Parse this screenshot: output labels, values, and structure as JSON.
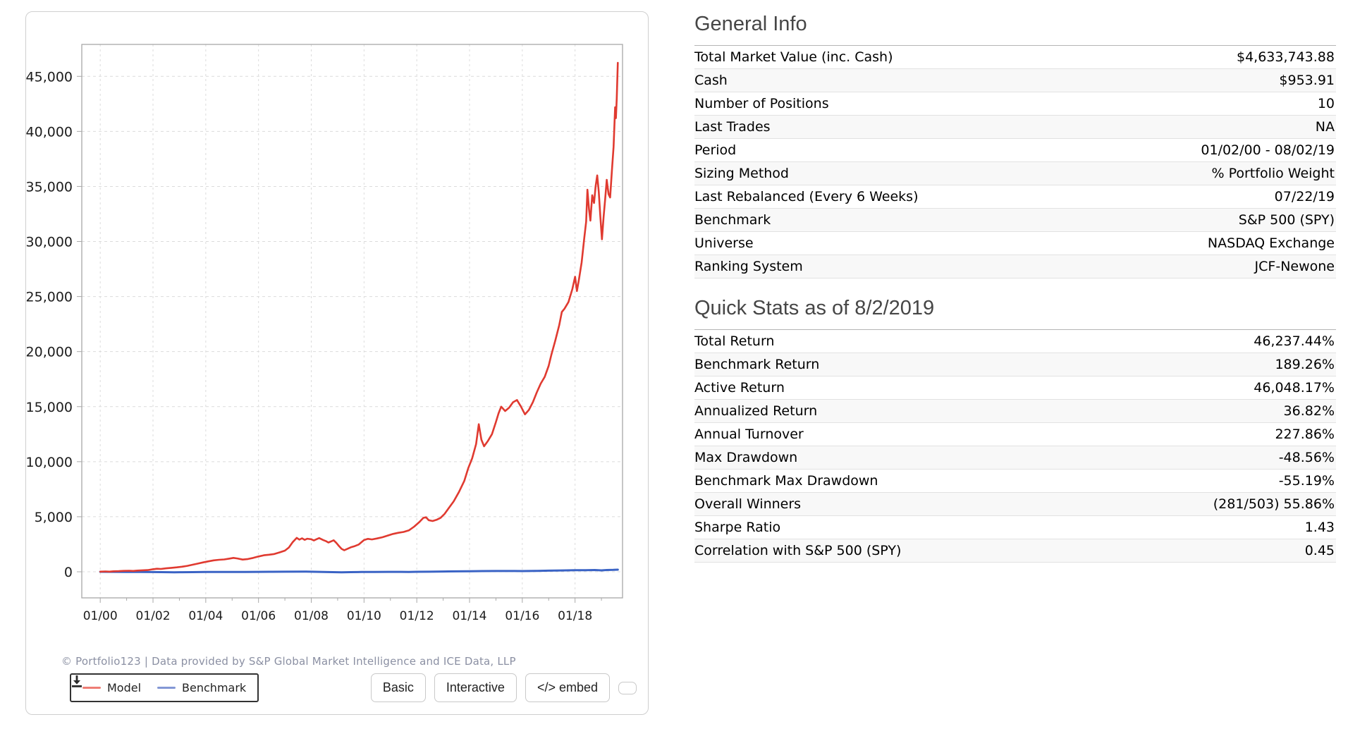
{
  "chart_card": {
    "attribution": "© Portfolio123 | Data provided by S&P Global Market Intelligence and ICE Data, LLP",
    "legend": [
      {
        "label": "Model",
        "swatch_color": "#ee7d75"
      },
      {
        "label": "Benchmark",
        "swatch_color": "#8397d5"
      }
    ],
    "buttons": {
      "basic": "Basic",
      "interactive": "Interactive",
      "embed": "</> embed",
      "download_icon": "download-icon"
    },
    "chart_data": {
      "type": "line",
      "title": "",
      "xlabel": "",
      "ylabel": "",
      "grid": true,
      "legend_position": "bottom-left",
      "xlim": [
        1999.3,
        2019.8
      ],
      "ylim": [
        -2370,
        47900
      ],
      "y_ticks": [
        0,
        5000,
        10000,
        15000,
        20000,
        25000,
        30000,
        35000,
        40000,
        45000
      ],
      "y_tick_labels": [
        "0",
        "5,000",
        "10,000",
        "15,000",
        "20,000",
        "25,000",
        "30,000",
        "35,000",
        "40,000",
        "45,000"
      ],
      "x_ticks": [
        2000,
        2002,
        2004,
        2006,
        2008,
        2010,
        2012,
        2014,
        2016,
        2018
      ],
      "x_tick_labels": [
        "01/00",
        "01/02",
        "01/04",
        "01/06",
        "01/08",
        "01/10",
        "01/12",
        "01/14",
        "01/16",
        "01/18"
      ],
      "series": [
        {
          "name": "Benchmark",
          "color": "#3a63c5",
          "width": 3,
          "points": [
            [
              2000,
              0
            ],
            [
              2000.5,
              -6
            ],
            [
              2001,
              -13
            ],
            [
              2001.5,
              -20
            ],
            [
              2002,
              -26
            ],
            [
              2002.6,
              -40
            ],
            [
              2002.8,
              -45
            ],
            [
              2003.1,
              -38
            ],
            [
              2003.5,
              -30
            ],
            [
              2004,
              -22
            ],
            [
              2004.5,
              -18
            ],
            [
              2005,
              -15
            ],
            [
              2005.5,
              -12
            ],
            [
              2006,
              -6
            ],
            [
              2006.5,
              0
            ],
            [
              2007,
              6
            ],
            [
              2007.8,
              14
            ],
            [
              2008.3,
              -5
            ],
            [
              2008.8,
              -32
            ],
            [
              2009.15,
              -48
            ],
            [
              2009.5,
              -32
            ],
            [
              2009.9,
              -22
            ],
            [
              2010.4,
              -18
            ],
            [
              2010.9,
              -8
            ],
            [
              2011.4,
              -4
            ],
            [
              2011.7,
              -14
            ],
            [
              2012,
              -2
            ],
            [
              2012.5,
              6
            ],
            [
              2013,
              22
            ],
            [
              2013.5,
              38
            ],
            [
              2014,
              52
            ],
            [
              2014.5,
              62
            ],
            [
              2015,
              72
            ],
            [
              2015.7,
              70
            ],
            [
              2016,
              64
            ],
            [
              2016.5,
              78
            ],
            [
              2017,
              104
            ],
            [
              2017.5,
              122
            ],
            [
              2018,
              146
            ],
            [
              2018.4,
              140
            ],
            [
              2018.75,
              158
            ],
            [
              2019,
              128
            ],
            [
              2019.2,
              158
            ],
            [
              2019.45,
              172
            ],
            [
              2019.62,
              189
            ]
          ]
        },
        {
          "name": "Model",
          "color": "#e03a30",
          "width": 2.6,
          "points": [
            [
              2000,
              10
            ],
            [
              2000.2,
              30
            ],
            [
              2000.35,
              15
            ],
            [
              2000.5,
              45
            ],
            [
              2000.7,
              60
            ],
            [
              2000.9,
              80
            ],
            [
              2001.1,
              95
            ],
            [
              2001.25,
              75
            ],
            [
              2001.4,
              110
            ],
            [
              2001.6,
              135
            ],
            [
              2001.8,
              155
            ],
            [
              2002,
              230
            ],
            [
              2002.15,
              275
            ],
            [
              2002.3,
              255
            ],
            [
              2002.5,
              310
            ],
            [
              2002.7,
              360
            ],
            [
              2002.9,
              400
            ],
            [
              2003.1,
              460
            ],
            [
              2003.3,
              540
            ],
            [
              2003.5,
              640
            ],
            [
              2003.7,
              740
            ],
            [
              2003.9,
              850
            ],
            [
              2004.1,
              950
            ],
            [
              2004.3,
              1040
            ],
            [
              2004.5,
              1090
            ],
            [
              2004.7,
              1120
            ],
            [
              2004.9,
              1200
            ],
            [
              2005.05,
              1260
            ],
            [
              2005.2,
              1210
            ],
            [
              2005.4,
              1110
            ],
            [
              2005.6,
              1160
            ],
            [
              2005.8,
              1260
            ],
            [
              2006,
              1390
            ],
            [
              2006.2,
              1500
            ],
            [
              2006.4,
              1550
            ],
            [
              2006.6,
              1610
            ],
            [
              2006.8,
              1760
            ],
            [
              2007,
              1920
            ],
            [
              2007.15,
              2200
            ],
            [
              2007.3,
              2700
            ],
            [
              2007.45,
              3080
            ],
            [
              2007.55,
              2920
            ],
            [
              2007.65,
              3040
            ],
            [
              2007.75,
              2900
            ],
            [
              2007.85,
              3000
            ],
            [
              2008,
              2950
            ],
            [
              2008.1,
              2840
            ],
            [
              2008.2,
              2960
            ],
            [
              2008.3,
              3060
            ],
            [
              2008.45,
              2890
            ],
            [
              2008.55,
              2790
            ],
            [
              2008.65,
              2660
            ],
            [
              2008.75,
              2760
            ],
            [
              2008.85,
              2860
            ],
            [
              2008.95,
              2620
            ],
            [
              2009.05,
              2340
            ],
            [
              2009.15,
              2080
            ],
            [
              2009.25,
              1960
            ],
            [
              2009.35,
              2060
            ],
            [
              2009.5,
              2220
            ],
            [
              2009.65,
              2330
            ],
            [
              2009.8,
              2480
            ],
            [
              2010,
              2880
            ],
            [
              2010.15,
              2990
            ],
            [
              2010.3,
              2940
            ],
            [
              2010.5,
              3030
            ],
            [
              2010.7,
              3140
            ],
            [
              2010.9,
              3290
            ],
            [
              2011.1,
              3440
            ],
            [
              2011.3,
              3540
            ],
            [
              2011.5,
              3620
            ],
            [
              2011.7,
              3760
            ],
            [
              2011.9,
              4100
            ],
            [
              2012.1,
              4520
            ],
            [
              2012.25,
              4900
            ],
            [
              2012.35,
              4950
            ],
            [
              2012.45,
              4690
            ],
            [
              2012.6,
              4610
            ],
            [
              2012.75,
              4720
            ],
            [
              2012.9,
              4890
            ],
            [
              2013.05,
              5250
            ],
            [
              2013.2,
              5750
            ],
            [
              2013.4,
              6400
            ],
            [
              2013.6,
              7250
            ],
            [
              2013.8,
              8250
            ],
            [
              2013.95,
              9400
            ],
            [
              2014.1,
              10300
            ],
            [
              2014.25,
              11600
            ],
            [
              2014.35,
              13400
            ],
            [
              2014.45,
              12000
            ],
            [
              2014.55,
              11400
            ],
            [
              2014.7,
              11900
            ],
            [
              2014.85,
              12500
            ],
            [
              2015,
              13600
            ],
            [
              2015.1,
              14400
            ],
            [
              2015.2,
              15000
            ],
            [
              2015.35,
              14600
            ],
            [
              2015.5,
              14900
            ],
            [
              2015.65,
              15400
            ],
            [
              2015.8,
              15600
            ],
            [
              2015.95,
              15000
            ],
            [
              2016.1,
              14300
            ],
            [
              2016.25,
              14700
            ],
            [
              2016.4,
              15400
            ],
            [
              2016.55,
              16300
            ],
            [
              2016.7,
              17100
            ],
            [
              2016.85,
              17700
            ],
            [
              2017,
              18700
            ],
            [
              2017.1,
              19700
            ],
            [
              2017.25,
              21000
            ],
            [
              2017.4,
              22400
            ],
            [
              2017.5,
              23600
            ],
            [
              2017.6,
              23900
            ],
            [
              2017.75,
              24500
            ],
            [
              2017.9,
              25700
            ],
            [
              2018,
              26800
            ],
            [
              2018.07,
              25500
            ],
            [
              2018.15,
              26600
            ],
            [
              2018.25,
              28100
            ],
            [
              2018.35,
              30300
            ],
            [
              2018.42,
              31800
            ],
            [
              2018.47,
              34700
            ],
            [
              2018.53,
              32900
            ],
            [
              2018.58,
              31900
            ],
            [
              2018.65,
              34200
            ],
            [
              2018.72,
              33500
            ],
            [
              2018.78,
              35000
            ],
            [
              2018.84,
              36000
            ],
            [
              2018.9,
              34500
            ],
            [
              2018.96,
              32200
            ],
            [
              2019.02,
              30200
            ],
            [
              2019.08,
              32200
            ],
            [
              2019.14,
              33800
            ],
            [
              2019.2,
              35600
            ],
            [
              2019.27,
              34300
            ],
            [
              2019.33,
              34000
            ],
            [
              2019.4,
              36500
            ],
            [
              2019.46,
              38600
            ],
            [
              2019.52,
              42200
            ],
            [
              2019.55,
              41200
            ],
            [
              2019.58,
              43000
            ],
            [
              2019.62,
              46237
            ]
          ]
        }
      ]
    }
  },
  "general_info": {
    "title": "General Info",
    "rows": [
      {
        "label": "Total Market Value (inc. Cash)",
        "value": "$4,633,743.88"
      },
      {
        "label": "Cash",
        "value": "$953.91"
      },
      {
        "label": "Number of Positions",
        "value": "10",
        "label_link": true,
        "value_link": true
      },
      {
        "label": "Last Trades",
        "value": "NA"
      },
      {
        "label": "Period",
        "value": "01/02/00 - 08/02/19"
      },
      {
        "label": "Sizing Method",
        "value": "% Portfolio Weight"
      },
      {
        "label": "Last Rebalanced (Every 6 Weeks)",
        "value": "07/22/19"
      },
      {
        "label": "Benchmark",
        "value": "S&P 500 (SPY)"
      },
      {
        "label": "Universe",
        "value": "NASDAQ Exchange"
      },
      {
        "label": "Ranking System",
        "value": "JCF-Newone",
        "value_link": true
      }
    ]
  },
  "quick_stats": {
    "title": "Quick Stats as of 8/2/2019",
    "rows": [
      {
        "label": "Total Return",
        "value": "46,237.44%"
      },
      {
        "label": "Benchmark Return",
        "value": "189.26%"
      },
      {
        "label": "Active Return",
        "value": "46,048.17%"
      },
      {
        "label": "Annualized Return",
        "value": "36.82%"
      },
      {
        "label": "Annual Turnover",
        "value": "227.86%"
      },
      {
        "label": "Max Drawdown",
        "value": "-48.56%",
        "value_negative": true
      },
      {
        "label": "Benchmark Max Drawdown",
        "value": "-55.19%",
        "value_negative": true
      },
      {
        "label": "Overall Winners",
        "value": "(281/503) 55.86%"
      },
      {
        "label": "Sharpe Ratio",
        "value": "1.43"
      },
      {
        "label": "Correlation with S&P 500 (SPY)",
        "value": "0.45"
      }
    ]
  },
  "colors": {
    "model_line": "#e03a30",
    "benchmark_line": "#3a63c5",
    "link": "#2a52a0",
    "negative": "#c22525",
    "heading": "#464646",
    "grid": "#dcdcdc",
    "axis": "#a8a8a8",
    "tick_text": "#1c1c1c",
    "attribution_text": "#8b90a3"
  }
}
